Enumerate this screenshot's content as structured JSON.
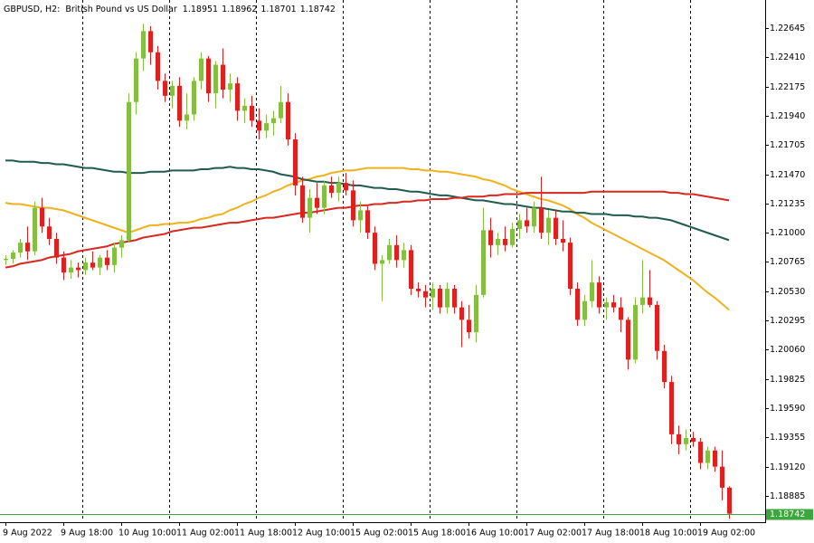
{
  "chart_data": {
    "type": "candlestick",
    "title": "GBPUSD, H2:",
    "subtitle": "British Pound vs US Dollar",
    "categories": [
      "9 Aug 2022",
      null,
      null,
      null,
      null,
      null,
      null,
      null,
      "9 Aug 18:00",
      null,
      null,
      null,
      null,
      null,
      null,
      null,
      "10 Aug 10:00",
      null,
      null,
      null,
      null,
      null,
      null,
      null,
      "11 Aug 02:00",
      null,
      null,
      null,
      null,
      null,
      null,
      null,
      "11 Aug 18:00",
      null,
      null,
      null,
      null,
      null,
      null,
      null,
      "12 Aug 10:00",
      null,
      null,
      null,
      null,
      null,
      null,
      null,
      "15 Aug 02:00",
      null,
      null,
      null,
      null,
      null,
      null,
      null,
      "15 Aug 18:00",
      null,
      null,
      null,
      null,
      null,
      null,
      null,
      "16 Aug 10:00",
      null,
      null,
      null,
      null,
      null,
      null,
      null,
      "17 Aug 02:00",
      null,
      null,
      null,
      null,
      null,
      null,
      null,
      "17 Aug 18:00",
      null,
      null,
      null,
      null,
      null,
      null,
      null,
      "18 Aug 10:00",
      null,
      null,
      null,
      null,
      null,
      null,
      null,
      "19 Aug 02:00",
      null,
      null,
      null,
      null
    ],
    "open": [
      1.2078,
      1.2079,
      1.2084,
      1.2092,
      1.2085,
      1.212,
      1.2105,
      1.2095,
      1.208,
      1.2068,
      1.2072,
      1.207,
      1.2076,
      1.2072,
      1.208,
      1.2074,
      1.2088,
      1.2094,
      1.2205,
      1.224,
      1.2262,
      1.2245,
      1.2222,
      1.221,
      1.2218,
      1.219,
      1.2195,
      1.2222,
      1.224,
      1.2212,
      1.2235,
      1.2215,
      1.222,
      1.2198,
      1.2202,
      1.219,
      1.2182,
      1.2188,
      1.2192,
      1.2205,
      1.2175,
      1.2138,
      1.2112,
      1.2128,
      1.212,
      1.2138,
      1.2132,
      1.214,
      1.2134,
      1.211,
      1.2118,
      1.21,
      1.2075,
      1.2078,
      1.209,
      1.2078,
      1.2086,
      1.2055,
      1.2053,
      1.2048,
      1.2055,
      1.204,
      1.2055,
      1.204,
      1.203,
      1.202,
      1.205,
      1.2102,
      1.209,
      1.2095,
      1.209,
      1.2103,
      1.211,
      1.2105,
      1.212,
      1.21,
      1.2112,
      1.2095,
      1.2092,
      1.2055,
      1.203,
      1.2045,
      1.206,
      1.204,
      1.2044,
      1.204,
      1.203,
      1.1998,
      1.2042,
      1.2048,
      1.2042,
      1.2005,
      1.198,
      1.1938,
      1.193,
      1.1935,
      1.1932,
      1.1915,
      1.1925,
      1.1912,
      1.18951
    ],
    "high": [
      1.2082,
      1.2086,
      1.2095,
      1.2105,
      1.2125,
      1.2128,
      1.2112,
      1.21,
      1.2085,
      1.2078,
      1.2076,
      1.208,
      1.2085,
      1.2082,
      1.2086,
      1.2092,
      1.2098,
      1.2212,
      1.2245,
      1.2268,
      1.2266,
      1.225,
      1.2228,
      1.2222,
      1.2225,
      1.2212,
      1.2225,
      1.2245,
      1.2242,
      1.2238,
      1.2248,
      1.2228,
      1.2225,
      1.2208,
      1.221,
      1.22,
      1.2195,
      1.2198,
      1.2218,
      1.2212,
      1.218,
      1.2145,
      1.2135,
      1.214,
      1.2142,
      1.2145,
      1.2145,
      1.2148,
      1.2142,
      1.2125,
      1.2122,
      1.2105,
      1.2082,
      1.2095,
      1.2098,
      1.2092,
      1.209,
      1.206,
      1.2058,
      1.206,
      1.2058,
      1.206,
      1.2058,
      1.2045,
      1.2042,
      1.2058,
      1.212,
      1.2112,
      1.21,
      1.2105,
      1.2108,
      1.2115,
      1.212,
      1.2125,
      1.2145,
      1.2118,
      1.2118,
      1.211,
      1.2096,
      1.206,
      1.205,
      1.2078,
      1.2065,
      1.2048,
      1.205,
      1.2048,
      1.2032,
      1.2048,
      1.2078,
      1.207,
      1.2045,
      1.201,
      1.1985,
      1.1945,
      1.1942,
      1.194,
      1.1935,
      1.1928,
      1.1928,
      1.1925,
      1.18962
    ],
    "low": [
      1.2074,
      1.2075,
      1.208,
      1.2078,
      1.2082,
      1.21,
      1.209,
      1.2075,
      1.2062,
      1.2063,
      1.2064,
      1.2066,
      1.207,
      1.2066,
      1.207,
      1.2068,
      1.208,
      1.2092,
      1.2195,
      1.223,
      1.2235,
      1.2215,
      1.2205,
      1.22,
      1.2185,
      1.2183,
      1.219,
      1.2215,
      1.2205,
      1.22,
      1.2208,
      1.2205,
      1.219,
      1.2188,
      1.2185,
      1.2175,
      1.2176,
      1.2178,
      1.2188,
      1.217,
      1.213,
      1.2108,
      1.21,
      1.2115,
      1.2115,
      1.2128,
      1.2125,
      1.213,
      1.2105,
      1.21,
      1.2095,
      1.207,
      1.2045,
      1.2075,
      1.2072,
      1.2072,
      1.205,
      1.2048,
      1.204,
      1.2038,
      1.2035,
      1.2035,
      1.2035,
      1.2008,
      1.2015,
      1.2012,
      1.2048,
      1.208,
      1.2082,
      1.2085,
      1.2088,
      1.2095,
      1.21,
      1.21,
      1.2095,
      1.209,
      1.209,
      1.2085,
      1.205,
      1.2025,
      1.2025,
      1.204,
      1.2035,
      1.203,
      1.2036,
      1.202,
      1.199,
      1.1995,
      1.2035,
      1.204,
      1.1998,
      1.1975,
      1.193,
      1.1922,
      1.1925,
      1.1928,
      1.191,
      1.191,
      1.1908,
      1.1885,
      1.18701
    ],
    "close": [
      1.2079,
      1.2084,
      1.2092,
      1.2085,
      1.212,
      1.2105,
      1.2095,
      1.208,
      1.2068,
      1.2072,
      1.207,
      1.2076,
      1.2072,
      1.208,
      1.2074,
      1.2088,
      1.2094,
      1.2205,
      1.224,
      1.2262,
      1.2245,
      1.2222,
      1.221,
      1.2218,
      1.219,
      1.2195,
      1.2222,
      1.224,
      1.2212,
      1.2235,
      1.2215,
      1.222,
      1.2198,
      1.2202,
      1.219,
      1.2182,
      1.2188,
      1.2192,
      1.2205,
      1.2175,
      1.2138,
      1.2112,
      1.2128,
      1.212,
      1.2138,
      1.2132,
      1.214,
      1.2134,
      1.211,
      1.2118,
      1.21,
      1.2075,
      1.2078,
      1.209,
      1.2078,
      1.2086,
      1.2055,
      1.2053,
      1.2048,
      1.2055,
      1.204,
      1.2055,
      1.204,
      1.203,
      1.202,
      1.205,
      1.2102,
      1.209,
      1.2095,
      1.209,
      1.2103,
      1.211,
      1.2105,
      1.212,
      1.21,
      1.2112,
      1.2095,
      1.2092,
      1.2055,
      1.203,
      1.2045,
      1.206,
      1.204,
      1.2044,
      1.204,
      1.203,
      1.1998,
      1.2042,
      1.2048,
      1.2042,
      1.2005,
      1.198,
      1.1938,
      1.193,
      1.1935,
      1.1932,
      1.1915,
      1.1925,
      1.1912,
      1.18951,
      1.18742
    ],
    "up_color": "#84bf41",
    "down_color": "#e21f1f",
    "bid_color": "#3aa83a",
    "series": [
      {
        "color": "#f0b21c",
        "values": [
          1.2124,
          1.2123,
          1.2123,
          1.2122,
          1.2121,
          1.212,
          1.212,
          1.2119,
          1.2118,
          1.2116,
          1.2114,
          1.2112,
          1.211,
          1.2108,
          1.2106,
          1.2104,
          1.2102,
          1.21,
          1.2102,
          1.2104,
          1.2106,
          1.2106,
          1.2107,
          1.2107,
          1.2108,
          1.2108,
          1.2109,
          1.2111,
          1.2112,
          1.2114,
          1.2115,
          1.2118,
          1.212,
          1.2123,
          1.2125,
          1.2128,
          1.213,
          1.2133,
          1.2135,
          1.2138,
          1.214,
          1.2142,
          1.2143,
          1.2145,
          1.2146,
          1.2148,
          1.2149,
          1.215,
          1.215,
          1.2151,
          1.2152,
          1.2152,
          1.2152,
          1.2152,
          1.2152,
          1.2152,
          1.2151,
          1.2151,
          1.215,
          1.215,
          1.2149,
          1.2149,
          1.2148,
          1.2147,
          1.2146,
          1.2145,
          1.2143,
          1.2142,
          1.214,
          1.2138,
          1.2135,
          1.2133,
          1.2131,
          1.2129,
          1.2127,
          1.2126,
          1.2124,
          1.2122,
          1.2119,
          1.2115,
          1.2112,
          1.2108,
          1.2105,
          1.2102,
          1.2099,
          1.2096,
          1.2093,
          1.209,
          1.2087,
          1.2084,
          1.2081,
          1.2078,
          1.2074,
          1.207,
          1.2066,
          1.2062,
          1.2057,
          1.2052,
          1.2048,
          1.2043,
          1.2038
        ]
      },
      {
        "color": "#1f5b4f",
        "values": [
          1.2158,
          1.2158,
          1.2157,
          1.2157,
          1.2157,
          1.2156,
          1.2156,
          1.2155,
          1.2155,
          1.2154,
          1.2153,
          1.2152,
          1.2152,
          1.2151,
          1.215,
          1.2149,
          1.2149,
          1.2148,
          1.2148,
          1.2148,
          1.2149,
          1.2149,
          1.2149,
          1.215,
          1.215,
          1.215,
          1.215,
          1.2151,
          1.2151,
          1.2152,
          1.2152,
          1.2153,
          1.2152,
          1.2152,
          1.2151,
          1.2151,
          1.215,
          1.2149,
          1.2147,
          1.2146,
          1.2145,
          1.2143,
          1.2142,
          1.2141,
          1.2141,
          1.214,
          1.214,
          1.2139,
          1.2138,
          1.2138,
          1.2137,
          1.2136,
          1.2136,
          1.2135,
          1.2135,
          1.2134,
          1.2133,
          1.2133,
          1.2132,
          1.2131,
          1.213,
          1.213,
          1.2129,
          1.2128,
          1.2127,
          1.2126,
          1.2126,
          1.2125,
          1.2124,
          1.2123,
          1.2123,
          1.2122,
          1.2121,
          1.212,
          1.212,
          1.2119,
          1.2118,
          1.2117,
          1.2117,
          1.2116,
          1.2116,
          1.2115,
          1.2115,
          1.2115,
          1.2114,
          1.2114,
          1.2114,
          1.2113,
          1.2113,
          1.2112,
          1.2112,
          1.2111,
          1.211,
          1.2108,
          1.2106,
          1.2104,
          1.2102,
          1.21,
          1.2098,
          1.2096,
          1.2094
        ]
      },
      {
        "color": "#d8281f",
        "values": [
          1.2072,
          1.2073,
          1.2075,
          1.2076,
          1.2077,
          1.2078,
          1.208,
          1.2081,
          1.2082,
          1.2083,
          1.2085,
          1.2086,
          1.2087,
          1.2088,
          1.2089,
          1.2091,
          1.2092,
          1.2093,
          1.2094,
          1.2096,
          1.2097,
          1.2098,
          1.2099,
          1.2101,
          1.2102,
          1.2103,
          1.2104,
          1.2104,
          1.2105,
          1.2106,
          1.2107,
          1.2108,
          1.2108,
          1.2109,
          1.211,
          1.2111,
          1.2112,
          1.2112,
          1.2113,
          1.2114,
          1.2115,
          1.2116,
          1.2116,
          1.2117,
          1.2118,
          1.2119,
          1.212,
          1.212,
          1.2121,
          1.2122,
          1.2122,
          1.2123,
          1.2123,
          1.2124,
          1.2124,
          1.2125,
          1.2125,
          1.2126,
          1.2126,
          1.2127,
          1.2127,
          1.2127,
          1.2128,
          1.2128,
          1.2129,
          1.2129,
          1.2129,
          1.213,
          1.213,
          1.2131,
          1.2131,
          1.2131,
          1.2132,
          1.2132,
          1.2132,
          1.2132,
          1.2132,
          1.2132,
          1.2132,
          1.2132,
          1.2132,
          1.2133,
          1.2133,
          1.2133,
          1.2133,
          1.2133,
          1.2133,
          1.2133,
          1.2133,
          1.2133,
          1.2133,
          1.2133,
          1.2132,
          1.2132,
          1.2131,
          1.2131,
          1.213,
          1.2129,
          1.2128,
          1.2127,
          1.2126
        ]
      }
    ],
    "ylim": [
      1.18681,
      1.2287
    ],
    "yticks": [
      1.22645,
      {
        "value": 1.2241,
        "label": "1.22410"
      },
      1.22175,
      {
        "value": 1.2194,
        "label": "1.21940"
      },
      1.21705,
      {
        "value": 1.2147,
        "label": "1.21470"
      },
      1.21235,
      {
        "value": 1.21,
        "label": "1.21000"
      },
      1.20765,
      {
        "value": 1.2053,
        "label": "1.20530"
      },
      1.20295,
      {
        "value": 1.2006,
        "label": "1.20060"
      },
      1.19825,
      {
        "value": 1.1959,
        "label": "1.19590"
      },
      1.19355,
      {
        "value": 1.1912,
        "label": "1.19120"
      },
      1.18885
    ],
    "grid": false
  }
}
